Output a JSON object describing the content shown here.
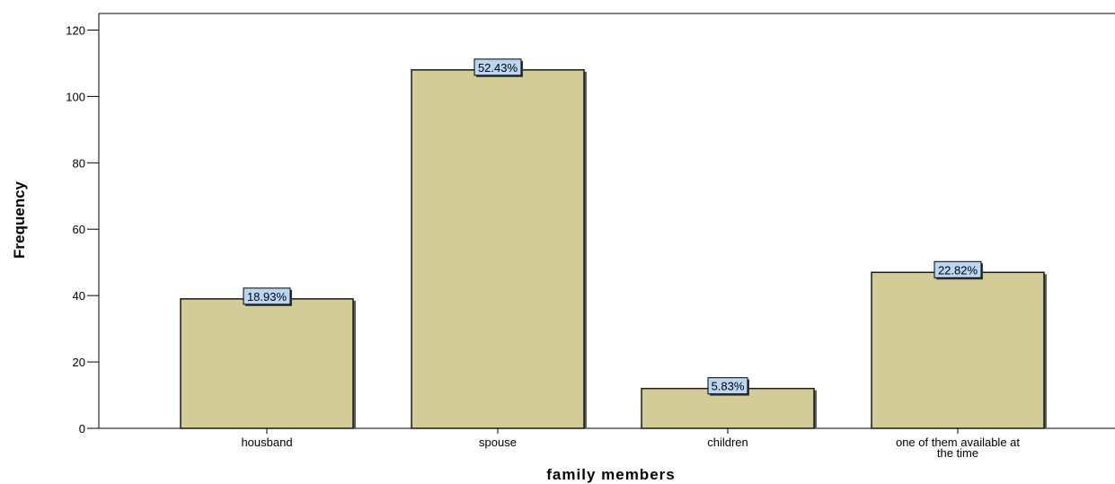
{
  "chart_data": {
    "type": "bar",
    "title": "",
    "xlabel": "family members",
    "ylabel": "Frequency",
    "categories": [
      "housband",
      "spouse",
      "children",
      "one of them available at the time"
    ],
    "category_lines": [
      [
        "housband"
      ],
      [
        "spouse"
      ],
      [
        "children"
      ],
      [
        "one of them available at",
        "the time"
      ]
    ],
    "values": [
      39,
      108,
      12,
      47
    ],
    "data_labels": [
      "18.93%",
      "52.43%",
      "5.83%",
      "22.82%"
    ],
    "ylim": [
      0,
      125
    ],
    "yticks": [
      0,
      20,
      40,
      60,
      80,
      100,
      120
    ],
    "grid": false,
    "legend": "none",
    "colors": {
      "bar_fill": "#d3cc96",
      "bar_stroke": "#1a1a1a",
      "label_fill": "#b9d6f2",
      "axis": "#000000"
    }
  }
}
